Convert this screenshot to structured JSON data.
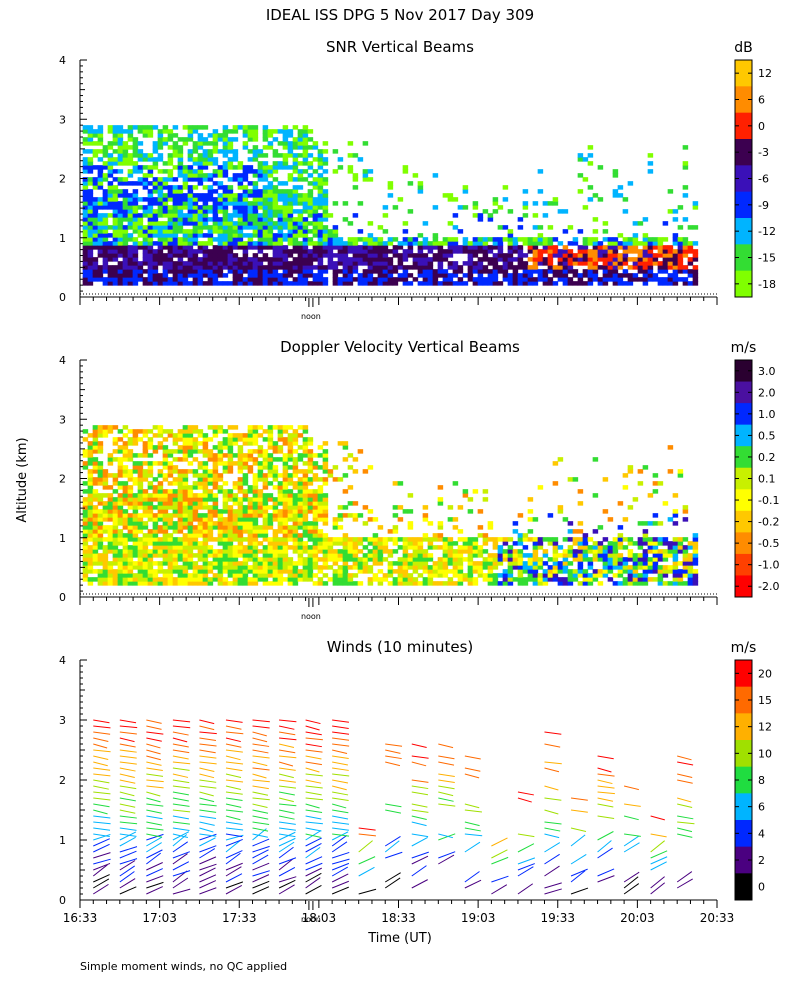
{
  "header": {
    "title": "IDEAL ISS DPG    5 Nov 2017 Day 309"
  },
  "footer": {
    "note": "Simple moment winds, no QC applied"
  },
  "shared": {
    "ylabel": "Altitude (km)",
    "xlabel": "Time (UT)",
    "noon_label": "noon",
    "ylim_km": [
      0,
      4
    ],
    "xlim_min_utc": [
      993,
      1233
    ],
    "x_tick_labels": [
      "16:33",
      "17:03",
      "17:33",
      "18:03",
      "18:33",
      "19:03",
      "19:33",
      "20:03",
      "20:33"
    ],
    "y_tick_labels": [
      "0",
      "1",
      "2",
      "3",
      "4"
    ]
  },
  "palette": {
    "white": "#ffffff",
    "chartreuse": "#80ff00",
    "green": "#33dd33",
    "skyblue": "#00b4ff",
    "blue": "#0028ff",
    "indigo": "#3a10b8",
    "darkpurple": "#3c0050",
    "red": "#ff2000",
    "orange": "#ff8c00",
    "yellow_orange": "#ffc800",
    "yellow": "#ffff00",
    "lime": "#c8f000",
    "magenta": "#aa00ff",
    "black": "#000000"
  },
  "chart_data": [
    {
      "id": "snr",
      "type": "heatmap",
      "title": "SNR Vertical Beams",
      "unit": "dB",
      "ylabel": "Altitude (km)",
      "xlabel": "",
      "ylim": [
        0,
        4
      ],
      "colorbar_ticks": [
        "12",
        "6",
        "0",
        "-3",
        "-6",
        "-9",
        "-12",
        "-15",
        "-18"
      ],
      "colorbar_colors": [
        "#ffc800",
        "#ff8c00",
        "#ff2000",
        "#3c0050",
        "#3a10b8",
        "#0028ff",
        "#00b4ff",
        "#33dd33",
        "#80ff00"
      ]
    },
    {
      "id": "doppler",
      "type": "heatmap",
      "title": "Doppler Velocity Vertical Beams",
      "unit": "m/s",
      "ylabel": "Altitude (km)",
      "xlabel": "",
      "ylim": [
        0,
        4
      ],
      "colorbar_ticks": [
        "3.0",
        "2.0",
        "1.0",
        "0.5",
        "0.2",
        "0.1",
        "-0.1",
        "-0.2",
        "-0.5",
        "-1.0",
        "-2.0"
      ],
      "colorbar_colors": [
        "#2a0030",
        "#4a10a0",
        "#0028ff",
        "#00b4ff",
        "#33dd33",
        "#c8f000",
        "#ffff00",
        "#ffc800",
        "#ff8c00",
        "#ff4000",
        "#ff0000"
      ]
    },
    {
      "id": "winds",
      "type": "scatter",
      "title": "Winds (10 minutes)",
      "unit": "m/s",
      "ylabel": "Altitude (km)",
      "xlabel": "Time (UT)",
      "ylim": [
        0,
        4
      ],
      "colorbar_ticks": [
        "20",
        "15",
        "12",
        "10",
        "8",
        "6",
        "4",
        "2",
        "0"
      ],
      "colorbar_colors": [
        "#ff0000",
        "#ff6a00",
        "#ffb000",
        "#a0e000",
        "#20dd40",
        "#00b4ff",
        "#0028ff",
        "#4a0080",
        "#000000"
      ],
      "profile_times_utc": [
        "16:38",
        "16:48",
        "16:58",
        "17:08",
        "17:18",
        "17:28",
        "17:38",
        "17:48",
        "17:58",
        "18:08",
        "18:18",
        "18:28",
        "18:38",
        "18:48",
        "18:58",
        "19:08",
        "19:18",
        "19:28",
        "19:38",
        "19:48",
        "19:58",
        "20:08",
        "20:18"
      ]
    }
  ]
}
